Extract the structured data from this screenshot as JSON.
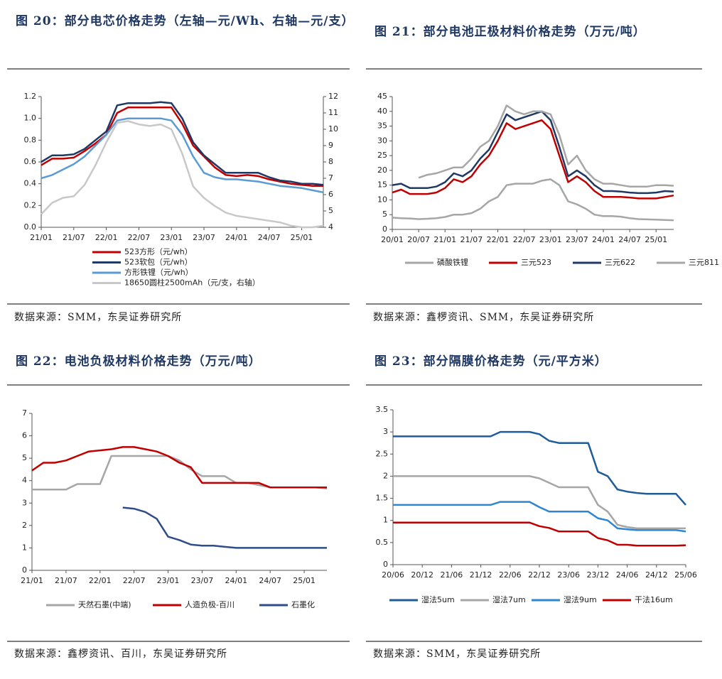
{
  "chart_data": [
    {
      "type": "line",
      "title": "图 20：部分电芯价格走势（左轴—元/Wh、右轴—元/支）",
      "source": "数据来源：SMM，东吴证券研究所",
      "legend": "bottom",
      "categories": [
        "21/01",
        null,
        null,
        "21/07",
        null,
        null,
        "22/01",
        null,
        null,
        "22/07",
        null,
        null,
        "23/01",
        null,
        null,
        "23/07",
        null,
        null,
        "24/01",
        null,
        null,
        "24/07",
        null,
        null,
        "25/01",
        null,
        null
      ],
      "ylim": [
        0,
        1.2
      ],
      "yticks": [
        {
          "value": 0,
          "label": "0.0"
        },
        0.2,
        0.4,
        0.6,
        0.8,
        {
          "value": 1,
          "label": "1.0"
        },
        1.2
      ],
      "y2lim": [
        4,
        12
      ],
      "y2ticks": [
        4,
        5,
        6,
        7,
        8,
        9,
        10,
        11,
        12
      ],
      "series": [
        {
          "name": "523方形（元/wh）",
          "color": "#c00000",
          "values": [
            0.57,
            0.63,
            0.63,
            0.64,
            0.7,
            0.77,
            0.85,
            1.05,
            1.1,
            1.1,
            1.1,
            1.1,
            1.1,
            0.95,
            0.75,
            0.65,
            0.55,
            0.48,
            0.47,
            0.48,
            0.47,
            0.44,
            0.42,
            0.4,
            0.39,
            0.38,
            0.38
          ]
        },
        {
          "name": "523软包（元/wh）",
          "color": "#1f3864",
          "values": [
            0.6,
            0.66,
            0.66,
            0.67,
            0.72,
            0.8,
            0.88,
            1.12,
            1.14,
            1.14,
            1.14,
            1.15,
            1.14,
            1.0,
            0.78,
            0.66,
            0.58,
            0.5,
            0.5,
            0.5,
            0.5,
            0.46,
            0.43,
            0.42,
            0.4,
            0.4,
            0.39
          ]
        },
        {
          "name": "方形铁锂（元/wh）",
          "color": "#5b9bd5",
          "values": [
            0.45,
            0.48,
            0.53,
            0.58,
            0.65,
            0.75,
            0.85,
            0.98,
            1.0,
            1.0,
            1.0,
            1.0,
            0.98,
            0.85,
            0.65,
            0.5,
            0.46,
            0.44,
            0.44,
            0.43,
            0.42,
            0.4,
            0.38,
            0.37,
            0.36,
            0.34,
            0.32
          ]
        },
        {
          "name": "18650圆柱2500mAh（元/支，右轴）",
          "color": "#c8c8c8",
          "axis": "y2",
          "values": [
            4.8,
            5.5,
            5.8,
            5.9,
            6.6,
            7.8,
            9.2,
            10.4,
            10.5,
            10.3,
            10.2,
            10.3,
            10.0,
            8.5,
            6.5,
            5.8,
            5.3,
            4.9,
            4.7,
            4.6,
            4.5,
            4.4,
            4.3,
            4.1,
            4.0,
            4.0,
            4.1
          ]
        }
      ]
    },
    {
      "type": "line",
      "title": "图 21：部分电池正极材料价格走势（万元/吨）",
      "source": "数据来源：鑫椤资讯、SMM，东吴证券研究所",
      "legend": "bottom",
      "categories": [
        "20/01",
        null,
        null,
        "20/07",
        null,
        null,
        "21/01",
        null,
        null,
        "21/07",
        null,
        null,
        "22/01",
        null,
        null,
        "22/07",
        null,
        null,
        "23/01",
        null,
        null,
        "23/07",
        null,
        null,
        "24/01",
        null,
        null,
        "24/07",
        null,
        null,
        "25/01",
        null,
        null
      ],
      "ylim": [
        0,
        45
      ],
      "yticks": [
        0,
        5,
        10,
        15,
        20,
        25,
        30,
        35,
        40,
        45
      ],
      "series": [
        {
          "name": "磷酸铁锂",
          "color": "#a6a6a6",
          "values": [
            4,
            3.8,
            3.7,
            3.5,
            3.6,
            3.8,
            4.2,
            5,
            5,
            5.5,
            7,
            9.5,
            11,
            15,
            15.5,
            15.5,
            15.5,
            16.5,
            17,
            15,
            9.5,
            8.5,
            7,
            5,
            4.5,
            4.5,
            4.3,
            3.8,
            3.5,
            3.4,
            3.3,
            3.2,
            3.1
          ]
        },
        {
          "name": "三元523",
          "color": "#c00000",
          "values": [
            12.5,
            13.5,
            12,
            12,
            12,
            12.5,
            14,
            17,
            16,
            18,
            22,
            25,
            30,
            36,
            34,
            35,
            36,
            37,
            34,
            25,
            16,
            18,
            16,
            13,
            11,
            11,
            11,
            10.8,
            10.5,
            10.5,
            10.5,
            11,
            11.5
          ]
        },
        {
          "name": "三元622",
          "color": "#1f3864",
          "values": [
            15,
            15.5,
            14,
            14,
            14,
            14.5,
            16,
            19,
            18,
            20,
            24,
            27,
            33,
            39,
            37,
            38,
            39,
            40,
            37,
            28,
            18,
            20,
            18,
            15,
            13,
            13,
            12.8,
            12.5,
            12.3,
            12.3,
            12.5,
            13,
            12.8
          ]
        },
        {
          "name": "三元811",
          "color": "#a6a6a6",
          "values": [
            null,
            null,
            null,
            17.5,
            18.5,
            19,
            20,
            21,
            21,
            24,
            28,
            30,
            35,
            42,
            40,
            39,
            40,
            40,
            39,
            32,
            22,
            25,
            20,
            17,
            15.5,
            15.5,
            15,
            14.5,
            14.5,
            14.5,
            15,
            15,
            14.8
          ]
        }
      ]
    },
    {
      "type": "line",
      "title": "图 22：电池负极材料价格走势（万元/吨）",
      "source": "数据来源：鑫椤资讯、百川，东吴证券研究所",
      "legend": "bottom",
      "categories": [
        "21/01",
        null,
        null,
        "21/07",
        null,
        null,
        "22/01",
        null,
        null,
        "22/07",
        null,
        null,
        "23/01",
        null,
        null,
        "23/07",
        null,
        null,
        "24/01",
        null,
        null,
        "24/07",
        null,
        null,
        "25/01",
        null,
        null
      ],
      "ylim": [
        0,
        7
      ],
      "yticks": [
        0,
        1,
        2,
        3,
        4,
        5,
        6,
        7
      ],
      "series": [
        {
          "name": "天然石墨(中端)",
          "color": "#a6a6a6",
          "values": [
            3.6,
            3.6,
            3.6,
            3.6,
            3.85,
            3.85,
            3.85,
            5.1,
            5.1,
            5.1,
            5.1,
            5.1,
            5.1,
            4.9,
            4.5,
            4.2,
            4.2,
            4.2,
            3.9,
            3.9,
            3.8,
            3.7,
            3.7,
            3.7,
            3.7,
            3.7,
            3.65
          ]
        },
        {
          "name": "人造负极-百川",
          "color": "#c00000",
          "values": [
            4.45,
            4.8,
            4.8,
            4.9,
            5.1,
            5.3,
            5.35,
            5.4,
            5.5,
            5.5,
            5.4,
            5.3,
            5.1,
            4.8,
            4.6,
            3.9,
            3.9,
            3.9,
            3.9,
            3.9,
            3.9,
            3.7,
            3.7,
            3.7,
            3.7,
            3.7,
            3.7
          ]
        },
        {
          "name": "石墨化",
          "color": "#2f4d8a",
          "values": [
            null,
            null,
            null,
            null,
            null,
            null,
            null,
            null,
            2.8,
            2.75,
            2.6,
            2.3,
            1.5,
            1.35,
            1.15,
            1.1,
            1.1,
            1.05,
            1.0,
            1.0,
            1.0,
            1.0,
            1.0,
            1.0,
            1.0,
            1.0,
            1.0
          ]
        }
      ]
    },
    {
      "type": "line",
      "title": "图 23：部分隔膜价格走势（元/平方米）",
      "source": "数据来源：SMM，东吴证券研究所",
      "legend": "bottom",
      "categories": [
        "20/06",
        null,
        null,
        "20/12",
        null,
        null,
        "21/06",
        null,
        null,
        "21/12",
        null,
        null,
        "22/06",
        null,
        null,
        "22/12",
        null,
        null,
        "23/06",
        null,
        null,
        "23/12",
        null,
        null,
        "24/06",
        null,
        null,
        "24/12",
        null,
        null,
        "25/06"
      ],
      "ylim": [
        0,
        3.5
      ],
      "yticks": [
        0,
        0.5,
        1,
        1.5,
        2,
        2.5,
        3,
        3.5
      ],
      "series": [
        {
          "name": "湿法5um",
          "color": "#1f5c99",
          "values": [
            2.9,
            2.9,
            2.9,
            2.9,
            2.9,
            2.9,
            2.9,
            2.9,
            2.9,
            2.9,
            2.9,
            3.0,
            3.0,
            3.0,
            3.0,
            2.95,
            2.8,
            2.75,
            2.75,
            2.75,
            2.75,
            2.1,
            2.0,
            1.7,
            1.65,
            1.62,
            1.6,
            1.6,
            1.6,
            1.6,
            1.35
          ]
        },
        {
          "name": "湿法7um",
          "color": "#a6a6a6",
          "values": [
            2.0,
            2.0,
            2.0,
            2.0,
            2.0,
            2.0,
            2.0,
            2.0,
            2.0,
            2.0,
            2.0,
            2.0,
            2.0,
            2.0,
            2.0,
            1.95,
            1.85,
            1.75,
            1.75,
            1.75,
            1.75,
            1.35,
            1.2,
            0.9,
            0.85,
            0.82,
            0.82,
            0.82,
            0.82,
            0.82,
            0.82
          ]
        },
        {
          "name": "湿法9um",
          "color": "#2e86d1",
          "values": [
            1.35,
            1.35,
            1.35,
            1.35,
            1.35,
            1.35,
            1.35,
            1.35,
            1.35,
            1.35,
            1.35,
            1.42,
            1.42,
            1.42,
            1.42,
            1.3,
            1.2,
            1.2,
            1.2,
            1.2,
            1.2,
            1.05,
            1.0,
            0.82,
            0.8,
            0.78,
            0.78,
            0.78,
            0.78,
            0.78,
            0.75
          ]
        },
        {
          "name": "干法16um",
          "color": "#c00000",
          "values": [
            0.95,
            0.95,
            0.95,
            0.95,
            0.95,
            0.95,
            0.95,
            0.95,
            0.95,
            0.95,
            0.95,
            0.95,
            0.95,
            0.95,
            0.95,
            0.87,
            0.83,
            0.75,
            0.75,
            0.75,
            0.75,
            0.6,
            0.55,
            0.45,
            0.45,
            0.43,
            0.43,
            0.43,
            0.43,
            0.43,
            0.44
          ]
        }
      ]
    }
  ]
}
